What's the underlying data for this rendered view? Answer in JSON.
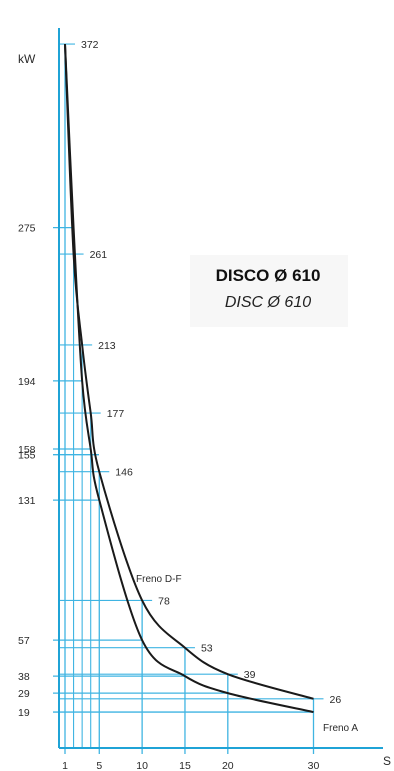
{
  "chart_data": {
    "type": "line",
    "title": "DISCO Ø 610",
    "subtitle": "DISC Ø 610",
    "ylabel": "kW",
    "xlabel": "S",
    "x_ticks": [
      "1",
      "5",
      "10",
      "15",
      "20",
      "30"
    ],
    "y_ticks": [
      "275",
      "194",
      "158",
      "155",
      "131",
      "57",
      "38",
      "29",
      "19"
    ],
    "ylim": [
      0,
      390
    ],
    "xlim": [
      0,
      39
    ],
    "grid": true,
    "colors": {
      "axis": "#1fa3d6",
      "grid": "#3fb4e2",
      "curve": "#1a1a1a"
    },
    "series": [
      {
        "name": "Freno D-F",
        "x": [
          1,
          2,
          3,
          4,
          5,
          10,
          15,
          20,
          30
        ],
        "y": [
          372,
          261,
          213,
          177,
          146,
          78,
          53,
          39,
          26
        ],
        "labels": [
          "372",
          "261",
          "213",
          "177",
          "146",
          "78",
          "53",
          "39",
          "26"
        ]
      },
      {
        "name": "Freno A",
        "x": [
          1,
          2,
          3,
          4,
          5,
          10,
          15,
          20,
          30
        ],
        "y": [
          372,
          275,
          194,
          158,
          131,
          57,
          38,
          29,
          19
        ]
      }
    ]
  }
}
